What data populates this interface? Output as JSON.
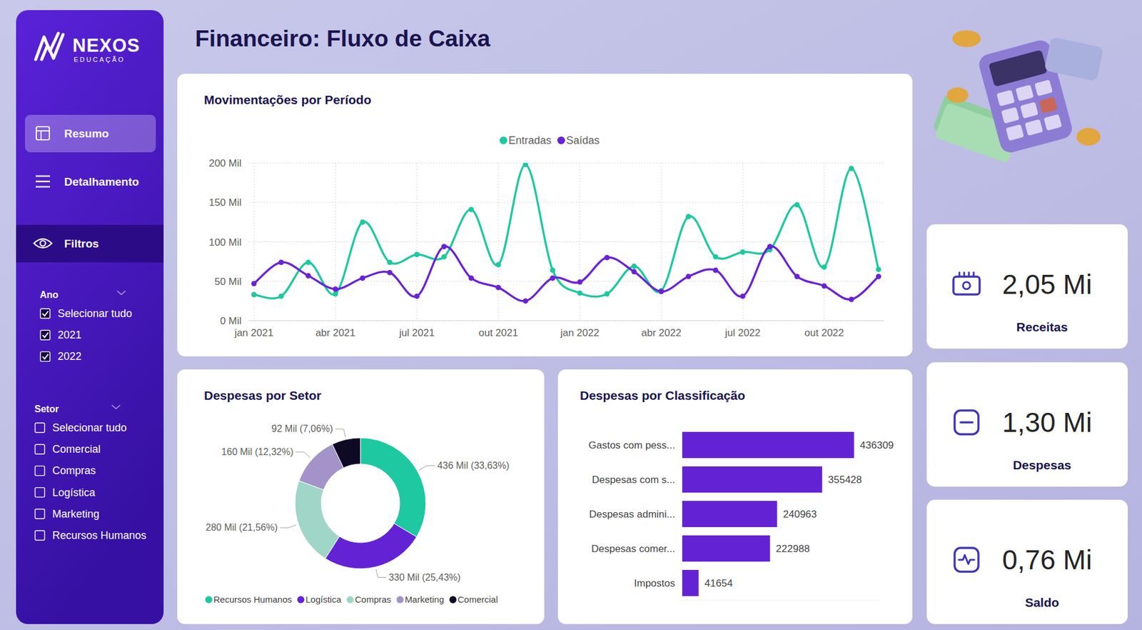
{
  "page": {
    "title": "Financeiro: Fluxo de Caixa",
    "logo": {
      "name": "NEXOS",
      "subtitle": "EDUCAÇÃO"
    },
    "nav": [
      {
        "label": "Resumo",
        "active": true
      },
      {
        "label": "Detalhamento",
        "active": false
      }
    ],
    "filters_title": "Filtros",
    "filters": [
      {
        "label": "Ano",
        "options": [
          {
            "label": "Selecionar tudo",
            "checked": true
          },
          {
            "label": "2021",
            "checked": true
          },
          {
            "label": "2022",
            "checked": true
          }
        ]
      },
      {
        "label": "Setor",
        "options": [
          {
            "label": "Selecionar tudo",
            "checked": false
          },
          {
            "label": "Comercial",
            "checked": false
          },
          {
            "label": "Compras",
            "checked": false
          },
          {
            "label": "Logística",
            "checked": false
          },
          {
            "label": "Marketing",
            "checked": false
          },
          {
            "label": "Recursos Humanos",
            "checked": false
          }
        ]
      }
    ],
    "kpis": [
      {
        "value": "2,05 Mi",
        "label": "Receitas"
      },
      {
        "value": "1,30 Mi",
        "label": "Despesas"
      },
      {
        "value": "0,76 Mi",
        "label": "Saldo"
      }
    ]
  },
  "chart_data": [
    {
      "type": "line",
      "title": "Movimentações por Período",
      "categories": [
        "jan 2021",
        null,
        null,
        "abr 2021",
        null,
        null,
        "jul 2021",
        null,
        null,
        "out 2021",
        null,
        null,
        "jan 2022",
        null,
        null,
        "abr 2022",
        null,
        null,
        "jul 2022",
        null,
        null,
        "out 2022",
        null,
        null
      ],
      "series": [
        {
          "name": "Entradas",
          "color": "#1ec8a0",
          "values": [
            33,
            31,
            74,
            34,
            125,
            74,
            84,
            81,
            141,
            71,
            198,
            64,
            35,
            34,
            69,
            38,
            132,
            81,
            87,
            90,
            147,
            68,
            193,
            65
          ]
        },
        {
          "name": "Saídas",
          "color": "#6a22d6",
          "values": [
            47,
            74,
            57,
            40,
            54,
            61,
            31,
            94,
            54,
            42,
            25,
            54,
            49,
            80,
            62,
            37,
            56,
            64,
            31,
            94,
            56,
            44,
            27,
            56
          ]
        }
      ],
      "ylim": [
        0,
        200
      ],
      "yticks": [
        {
          "value": 0,
          "label": "0 Mil"
        },
        {
          "value": 50,
          "label": "50 Mil"
        },
        {
          "value": 100,
          "label": "100 Mil"
        },
        {
          "value": 150,
          "label": "150 Mil"
        },
        {
          "value": 200,
          "label": "200 Mil"
        }
      ],
      "grid": true,
      "legend": "top",
      "marker": "circle",
      "line_style": "solid"
    },
    {
      "type": "donut",
      "title": "Despesas por Setor",
      "categories": [
        "Recursos Humanos",
        "Logística",
        "Compras",
        "Marketing",
        "Comercial"
      ],
      "values": [
        436,
        330,
        280,
        160,
        92
      ],
      "value_labels": [
        "436 Mil (33,63%)",
        "330 Mil (25,43%)",
        "280 Mil (21,56%)",
        "160 Mil (12,32%)",
        "92 Mil (7,06%)"
      ],
      "colors": [
        "#1ec8a0",
        "#6323d4",
        "#9fd6c8",
        "#a393c9",
        "#0e0a26"
      ],
      "data_labels": true,
      "legend": "bottom"
    },
    {
      "type": "bar",
      "title": "Despesas por Classificação",
      "orientation": "horizontal",
      "categories": [
        "Gastos com pess...",
        "Despesas com s...",
        "Despesas admini...",
        "Despesas comer...",
        "Impostos"
      ],
      "values": [
        436309,
        355428,
        240963,
        222988,
        41654
      ],
      "color": "#6323d4",
      "xlim": [
        0,
        500000
      ],
      "data_labels": true,
      "tick_labels": "y"
    }
  ]
}
